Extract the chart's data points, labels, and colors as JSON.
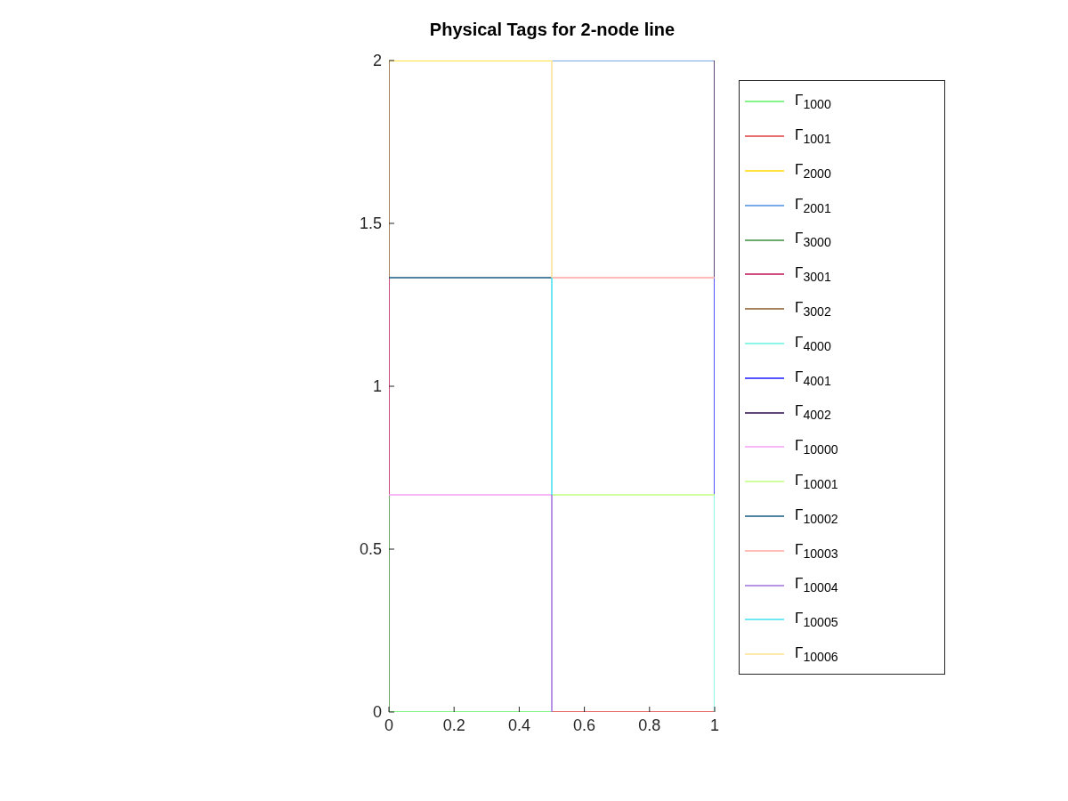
{
  "chart_data": {
    "type": "line",
    "title": "Physical Tags for 2-node line",
    "xlim": [
      0,
      1
    ],
    "xticks": [
      0,
      0.2,
      0.4,
      0.6,
      0.8,
      1
    ],
    "ylim": [
      0,
      2
    ],
    "yticks": [
      0,
      0.5,
      1,
      1.5,
      2
    ],
    "legend": "right",
    "marker": "none",
    "line_style": "solid",
    "series": [
      {
        "name": "Γ$_{1000}$",
        "color": "#5ef05e",
        "x": [
          0,
          0.5
        ],
        "values": [
          0,
          0
        ]
      },
      {
        "name": "Γ$_{1001}$",
        "color": "#e03c3c",
        "x": [
          0.5,
          1
        ],
        "values": [
          0,
          0
        ]
      },
      {
        "name": "Γ$_{2000}$",
        "color": "#ffd700",
        "x": [
          0,
          0.5
        ],
        "values": [
          2,
          2
        ]
      },
      {
        "name": "Γ$_{2001}$",
        "color": "#4a90e2",
        "x": [
          0.5,
          1
        ],
        "values": [
          2,
          2
        ]
      },
      {
        "name": "Γ$_{3000}$",
        "color": "#3c8c3c",
        "x": [
          0,
          0
        ],
        "values": [
          0,
          0.667
        ]
      },
      {
        "name": "Γ$_{3001}$",
        "color": "#c0145a",
        "x": [
          0,
          0
        ],
        "values": [
          0.667,
          1.333
        ]
      },
      {
        "name": "Γ$_{3002}$",
        "color": "#8b5a2b",
        "x": [
          0,
          0
        ],
        "values": [
          1.333,
          2
        ]
      },
      {
        "name": "Γ$_{4000}$",
        "color": "#66f5e0",
        "x": [
          1,
          1
        ],
        "values": [
          0,
          0.667
        ]
      },
      {
        "name": "Γ$_{4001}$",
        "color": "#1a1aff",
        "x": [
          1,
          1
        ],
        "values": [
          0.667,
          1.333
        ]
      },
      {
        "name": "Γ$_{4002}$",
        "color": "#2a0a4a",
        "x": [
          1,
          1
        ],
        "values": [
          1.333,
          2
        ]
      },
      {
        "name": "Γ$_{10000}$",
        "color": "#f5a0f5",
        "x": [
          0,
          0.5
        ],
        "values": [
          0.667,
          0.667
        ]
      },
      {
        "name": "Γ$_{10001}$",
        "color": "#c0ff80",
        "x": [
          0.5,
          1
        ],
        "values": [
          0.667,
          0.667
        ]
      },
      {
        "name": "Γ$_{10002}$",
        "color": "#145a80",
        "x": [
          0,
          0.5
        ],
        "values": [
          1.333,
          1.333
        ]
      },
      {
        "name": "Γ$_{10003}$",
        "color": "#ffaaa0",
        "x": [
          0.5,
          1
        ],
        "values": [
          1.333,
          1.333
        ]
      },
      {
        "name": "Γ$_{10004}$",
        "color": "#a070e0",
        "x": [
          0.5,
          0.5
        ],
        "values": [
          0,
          0.667
        ]
      },
      {
        "name": "Γ$_{10005}$",
        "color": "#40e0f0",
        "x": [
          0.5,
          0.5
        ],
        "values": [
          0.667,
          1.333
        ]
      },
      {
        "name": "Γ$_{10006}$",
        "color": "#ffe090",
        "x": [
          0.5,
          0.5
        ],
        "values": [
          1.333,
          2
        ]
      }
    ]
  }
}
